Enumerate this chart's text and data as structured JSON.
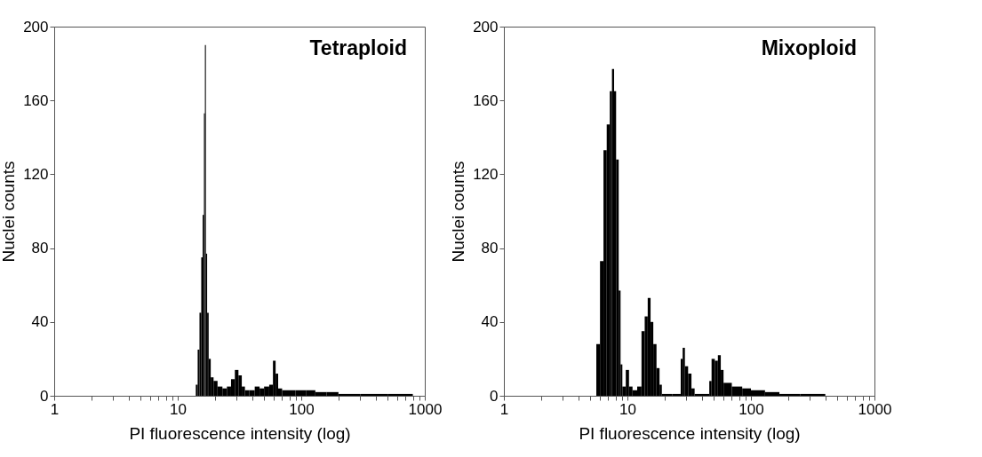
{
  "chart_data": [
    {
      "type": "histogram",
      "xlabel": "PI fluorescence intensity (log)",
      "ylabel": "Nuclei counts",
      "annotations": [
        "Tetraploid"
      ],
      "log": "x",
      "xlim": [
        1,
        1000
      ],
      "ylim": [
        0,
        200
      ],
      "xticks": [
        1,
        {
          "value": 2,
          "label": null
        },
        {
          "value": 3,
          "label": null
        },
        {
          "value": 4,
          "label": null
        },
        {
          "value": 5,
          "label": null
        },
        {
          "value": 6,
          "label": null
        },
        {
          "value": 7,
          "label": null
        },
        {
          "value": 8,
          "label": null
        },
        {
          "value": 9,
          "label": null
        },
        10,
        {
          "value": 20,
          "label": null
        },
        {
          "value": 30,
          "label": null
        },
        {
          "value": 40,
          "label": null
        },
        {
          "value": 50,
          "label": null
        },
        {
          "value": 60,
          "label": null
        },
        {
          "value": 70,
          "label": null
        },
        {
          "value": 80,
          "label": null
        },
        {
          "value": 90,
          "label": null
        },
        100,
        {
          "value": 200,
          "label": null
        },
        {
          "value": 300,
          "label": null
        },
        {
          "value": 400,
          "label": null
        },
        {
          "value": 500,
          "label": null
        },
        {
          "value": 600,
          "label": null
        },
        {
          "value": 700,
          "label": null
        },
        {
          "value": 800,
          "label": null
        },
        {
          "value": 900,
          "label": null
        },
        1000
      ],
      "yticks": [
        0,
        40,
        80,
        120,
        160,
        200
      ],
      "color": "#000000",
      "bins": [
        14,
        14.5,
        15,
        15.5,
        15.9,
        16.3,
        16.6,
        16.9,
        17.3,
        17.8,
        18.5,
        19.5,
        21,
        23,
        25,
        27,
        29,
        31,
        33,
        35,
        38,
        42,
        46,
        50,
        55,
        59,
        62,
        65,
        70,
        78,
        90,
        110,
        130,
        160,
        200,
        300,
        500,
        800
      ],
      "values": [
        6,
        25,
        45,
        75,
        98,
        153,
        190,
        77,
        45,
        20,
        10,
        8,
        5,
        4,
        5,
        9,
        14,
        11,
        5,
        3,
        3,
        5,
        4,
        5,
        6,
        19,
        12,
        4,
        3,
        3,
        3,
        3,
        2,
        2,
        1,
        1,
        1
      ]
    },
    {
      "type": "histogram",
      "xlabel": "PI fluorescence intensity (log)",
      "ylabel": "Nuclei counts",
      "annotations": [
        "Mixoploid"
      ],
      "log": "x",
      "xlim": [
        1,
        1000
      ],
      "ylim": [
        0,
        200
      ],
      "xticks": [
        1,
        {
          "value": 2,
          "label": null
        },
        {
          "value": 3,
          "label": null
        },
        {
          "value": 4,
          "label": null
        },
        {
          "value": 5,
          "label": null
        },
        {
          "value": 6,
          "label": null
        },
        {
          "value": 7,
          "label": null
        },
        {
          "value": 8,
          "label": null
        },
        {
          "value": 9,
          "label": null
        },
        10,
        {
          "value": 20,
          "label": null
        },
        {
          "value": 30,
          "label": null
        },
        {
          "value": 40,
          "label": null
        },
        {
          "value": 50,
          "label": null
        },
        {
          "value": 60,
          "label": null
        },
        {
          "value": 70,
          "label": null
        },
        {
          "value": 80,
          "label": null
        },
        {
          "value": 90,
          "label": null
        },
        100,
        {
          "value": 200,
          "label": null
        },
        {
          "value": 300,
          "label": null
        },
        {
          "value": 400,
          "label": null
        },
        {
          "value": 500,
          "label": null
        },
        {
          "value": 600,
          "label": null
        },
        {
          "value": 700,
          "label": null
        },
        {
          "value": 800,
          "label": null
        },
        {
          "value": 900,
          "label": null
        },
        1000
      ],
      "yticks": [
        0,
        40,
        80,
        120,
        160,
        200
      ],
      "color": "#000000",
      "bins": [
        5.6,
        6,
        6.4,
        6.8,
        7.2,
        7.5,
        7.8,
        8.1,
        8.5,
        8.8,
        9.1,
        9.7,
        10.3,
        11,
        12,
        13,
        13.8,
        14.6,
        15.4,
        16.2,
        17.2,
        18.2,
        19,
        23,
        27,
        28,
        29.2,
        31,
        33,
        35,
        46,
        48,
        51,
        54,
        57,
        60,
        70,
        85,
        100,
        130,
        170,
        250,
        400
      ],
      "values": [
        28,
        73,
        133,
        147,
        165,
        177,
        165,
        128,
        57,
        17,
        5,
        14,
        5,
        3,
        5,
        35,
        43,
        53,
        40,
        28,
        15,
        6,
        1,
        1,
        20,
        26,
        16,
        12,
        4,
        1,
        8,
        20,
        19,
        22,
        14,
        7,
        5,
        4,
        3,
        2,
        1,
        1
      ]
    }
  ]
}
